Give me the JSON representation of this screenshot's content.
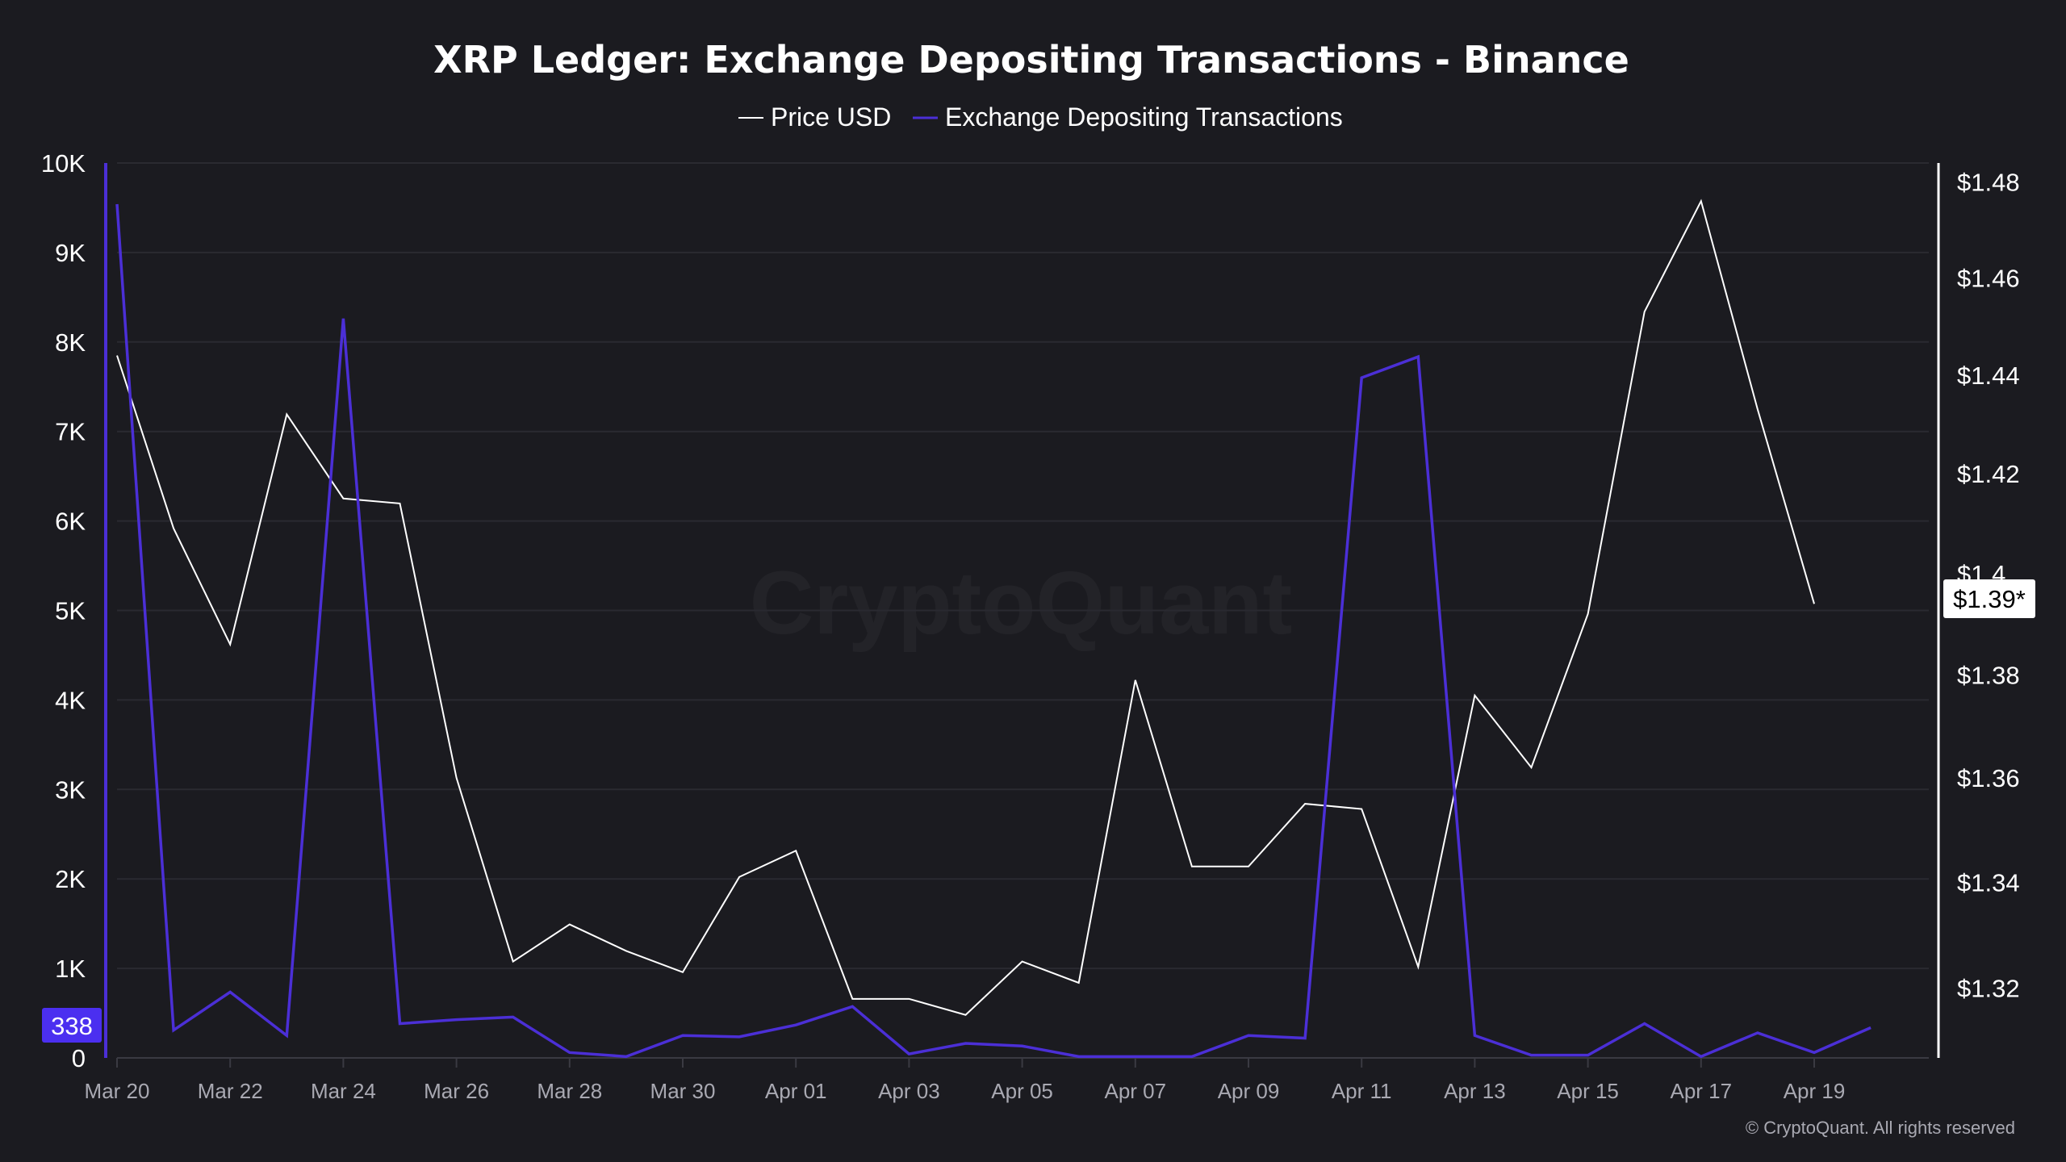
{
  "chart_data": {
    "type": "line",
    "title": "XRP Ledger: Exchange Depositing Transactions - Binance",
    "legend": [
      "Price USD",
      "Exchange Depositing Transactions"
    ],
    "legend_placement": "top-center",
    "x": [
      "Mar 20",
      "Mar 21",
      "Mar 22",
      "Mar 23",
      "Mar 24",
      "Mar 25",
      "Mar 26",
      "Mar 27",
      "Mar 28",
      "Mar 29",
      "Mar 30",
      "Mar 31",
      "Apr 01",
      "Apr 02",
      "Apr 03",
      "Apr 04",
      "Apr 05",
      "Apr 06",
      "Apr 07",
      "Apr 08",
      "Apr 09",
      "Apr 10",
      "Apr 11",
      "Apr 12",
      "Apr 13",
      "Apr 14",
      "Apr 15",
      "Apr 16",
      "Apr 17",
      "Apr 18",
      "Apr 19",
      "Apr 20"
    ],
    "x_tick_labels": [
      "Mar 20",
      "Mar 22",
      "Mar 24",
      "Mar 26",
      "Mar 28",
      "Mar 30",
      "Apr 01",
      "Apr 03",
      "Apr 05",
      "Apr 07",
      "Apr 09",
      "Apr 11",
      "Apr 13",
      "Apr 15",
      "Apr 17",
      "Apr 19"
    ],
    "series": [
      {
        "name": "Price USD",
        "axis": "right",
        "color": "#ffffff",
        "values": [
          1.444,
          1.409,
          1.386,
          1.432,
          1.415,
          1.414,
          1.36,
          1.325,
          1.332,
          1.327,
          1.323,
          1.341,
          1.346,
          1.318,
          1.318,
          1.315,
          1.325,
          1.321,
          1.379,
          1.343,
          1.343,
          1.355,
          1.354,
          1.324,
          1.376,
          1.362,
          1.392,
          1.453,
          1.476,
          1.433,
          1.394,
          null
        ]
      },
      {
        "name": "Exchange Depositing Transactions",
        "axis": "left",
        "color": "#4b2fd6",
        "values": [
          9540,
          310,
          736,
          250,
          8262,
          383,
          427,
          456,
          60,
          15,
          250,
          236,
          368,
          574,
          44,
          162,
          133,
          15,
          15,
          15,
          250,
          221,
          7600,
          7835,
          250,
          30,
          30,
          383,
          15,
          280,
          60,
          338
        ]
      }
    ],
    "y_left": {
      "ticks": [
        "0",
        "1K",
        "2K",
        "3K",
        "4K",
        "5K",
        "6K",
        "7K",
        "8K",
        "9K",
        "10K"
      ],
      "range": [
        0,
        10000
      ]
    },
    "y_right": {
      "ticks": [
        "$1.32",
        "$1.34",
        "$1.36",
        "$1.38",
        "$1.4",
        "$1.42",
        "$1.44",
        "$1.46",
        "$1.48"
      ],
      "tick_values": [
        1.32,
        1.34,
        1.36,
        1.38,
        1.4,
        1.42,
        1.44,
        1.46,
        1.48
      ],
      "range": [
        1.307,
        1.484
      ],
      "scale": "log"
    },
    "grid": true,
    "last_value_labels": {
      "left": "338",
      "right": "$1.39*"
    }
  },
  "watermark": "CryptoQuant",
  "copyright": "© CryptoQuant. All rights reserved"
}
